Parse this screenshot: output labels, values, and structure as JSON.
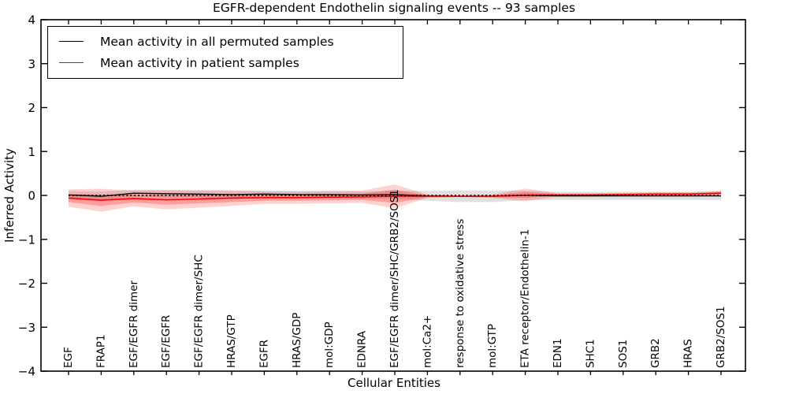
{
  "chart_data": {
    "type": "line",
    "title": "EGFR-dependent Endothelin signaling events -- 93 samples",
    "xlabel": "Cellular Entities",
    "ylabel": "Inferred Activity",
    "ylim": [
      -4,
      4
    ],
    "yticks": [
      -4,
      -3,
      -2,
      -1,
      0,
      1,
      2,
      3,
      4
    ],
    "grid": false,
    "legend_position": "upper left",
    "categories": [
      "EGF",
      "FRAP1",
      "EGF/EGFR dimer",
      "EGF/EGFR",
      "EGF/EGFR dimer/SHC",
      "HRAS/GTP",
      "EGFR",
      "HRAS/GDP",
      "mol:GDP",
      "EDNRA",
      "EGF/EGFR dimer/SHC/GRB2/SOS1",
      "mol:Ca2+",
      "response to oxidative stress",
      "mol:GTP",
      "ETA receptor/Endothelin-1",
      "EDN1",
      "SHC1",
      "SOS1",
      "GRB2",
      "HRAS",
      "GRB2/SOS1"
    ],
    "legend": [
      {
        "label": "Mean activity in all permuted samples",
        "color": "#000000"
      },
      {
        "label": "Mean activity in patient samples",
        "color": "#ff0000"
      }
    ],
    "series": [
      {
        "name": "Mean activity in all permuted samples",
        "color": "#000000",
        "values": [
          0.01,
          -0.02,
          0.05,
          0.04,
          0.03,
          0.02,
          0.03,
          0.02,
          0.02,
          0.01,
          0.02,
          -0.01,
          -0.02,
          -0.02,
          0.0,
          -0.01,
          -0.01,
          -0.01,
          -0.01,
          -0.01,
          -0.01
        ]
      },
      {
        "name": "Mean activity in patient samples",
        "color": "#ff0000",
        "values": [
          -0.06,
          -0.11,
          -0.07,
          -0.1,
          -0.08,
          -0.06,
          -0.05,
          -0.05,
          -0.04,
          -0.03,
          -0.02,
          -0.02,
          -0.02,
          -0.02,
          0.01,
          0.01,
          0.01,
          0.02,
          0.03,
          0.03,
          0.05
        ]
      }
    ],
    "bands": [
      {
        "name": "permuted-samples-band",
        "color": "#999999",
        "opacity": 0.3,
        "upper": [
          0.1,
          0.09,
          0.13,
          0.12,
          0.11,
          0.1,
          0.11,
          0.1,
          0.1,
          0.09,
          0.11,
          0.1,
          0.11,
          0.11,
          0.11,
          0.08,
          0.08,
          0.08,
          0.08,
          0.08,
          0.09
        ],
        "lower": [
          -0.08,
          -0.13,
          -0.03,
          -0.04,
          -0.05,
          -0.06,
          -0.05,
          -0.06,
          -0.06,
          -0.07,
          -0.07,
          -0.12,
          -0.15,
          -0.15,
          -0.11,
          -0.1,
          -0.1,
          -0.1,
          -0.1,
          -0.1,
          -0.11
        ]
      },
      {
        "name": "patient-samples-band-outer",
        "color": "#ff0000",
        "opacity": 0.18,
        "upper": [
          0.14,
          0.15,
          0.11,
          0.12,
          0.12,
          0.12,
          0.09,
          0.09,
          0.1,
          0.11,
          0.25,
          0.02,
          0.0,
          0.02,
          0.16,
          0.05,
          0.05,
          0.06,
          0.07,
          0.07,
          0.11
        ],
        "lower": [
          -0.26,
          -0.37,
          -0.25,
          -0.32,
          -0.28,
          -0.24,
          -0.19,
          -0.19,
          -0.18,
          -0.17,
          -0.29,
          -0.06,
          -0.04,
          -0.06,
          -0.13,
          -0.03,
          -0.03,
          -0.02,
          -0.01,
          -0.01,
          -0.02
        ]
      },
      {
        "name": "patient-samples-band-inner",
        "color": "#ff0000",
        "opacity": 0.25,
        "upper": [
          0.03,
          0.02,
          0.02,
          0.01,
          0.02,
          0.03,
          0.02,
          0.02,
          0.03,
          0.04,
          0.13,
          0.0,
          -0.01,
          0.0,
          0.08,
          0.03,
          0.03,
          0.04,
          0.05,
          0.05,
          0.08
        ],
        "lower": [
          -0.15,
          -0.24,
          -0.16,
          -0.21,
          -0.18,
          -0.15,
          -0.12,
          -0.12,
          -0.11,
          -0.1,
          -0.17,
          -0.04,
          -0.03,
          -0.04,
          -0.06,
          -0.01,
          -0.01,
          0.0,
          0.01,
          0.01,
          0.02
        ]
      }
    ],
    "zero_reference_line": {
      "value": 0,
      "style": "dotted",
      "color": "#000000"
    }
  }
}
